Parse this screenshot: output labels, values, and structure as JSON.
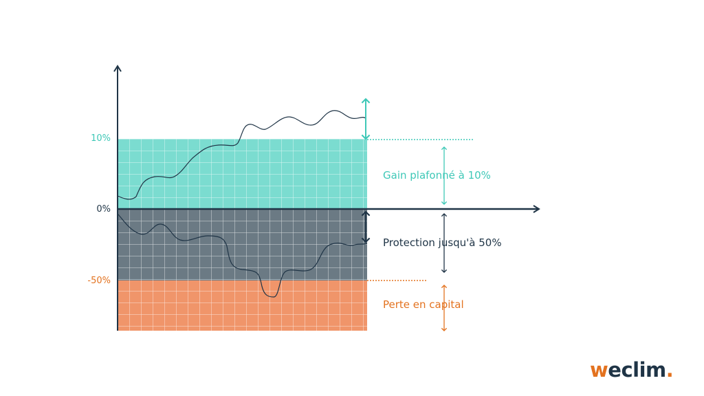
{
  "ticks": {
    "gain_cap": "10%",
    "zero": "0%",
    "protection_floor": "-50%"
  },
  "zones": {
    "gain": "Gain plafonné à 10%",
    "protection": "Protection jusqu'à 50%",
    "loss": "Perte en capital"
  },
  "logo": {
    "prefix": "w",
    "main": "eclim",
    "suffix": "."
  },
  "colors": {
    "gain": "#7bdcd0",
    "protection": "#6b7a84",
    "loss": "#f0956a",
    "axis": "#1f3446",
    "gain_text": "#3ec8b7",
    "loss_text": "#e3721f",
    "navy_text": "#1f3446"
  }
}
